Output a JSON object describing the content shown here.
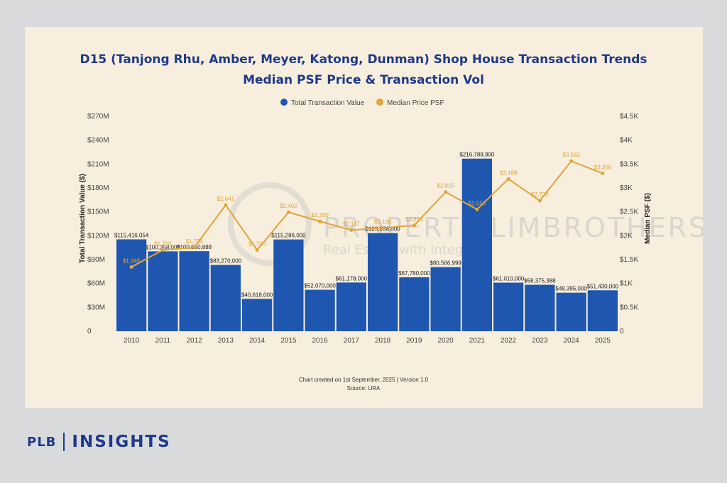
{
  "chart_data": {
    "type": "bar",
    "title": "D15 (Tanjong Rhu, Amber, Meyer, Katong, Dunman) Shop House Transaction Trends",
    "subtitle": "Median PSF Price & Transaction Vol",
    "categories": [
      "2010",
      "2011",
      "2012",
      "2013",
      "2014",
      "2015",
      "2016",
      "2017",
      "2018",
      "2019",
      "2020",
      "2021",
      "2022",
      "2023",
      "2024",
      "2025"
    ],
    "series": [
      {
        "name": "Total Transaction Value",
        "type": "bar",
        "axis": "left",
        "color": "#1f56b0",
        "values": [
          115416054,
          100358000,
          100550888,
          83270000,
          40618000,
          115286000,
          52070000,
          61178000,
          123258000,
          67780000,
          80566999,
          216788900,
          61010000,
          58375388,
          48395000,
          51430000
        ],
        "labels": [
          "$115,416,054",
          "$100,358,000",
          "$100,550,888",
          "$83,270,000",
          "$40,618,000",
          "$115,286,000",
          "$52,070,000",
          "$61,178,000",
          "$123,258,000",
          "$67,780,000",
          "$80,566,999",
          "$216,788,900",
          "$61,010,000",
          "$58,375,388",
          "$48,395,000",
          "$51,430,000"
        ]
      },
      {
        "name": "Median Price PSF",
        "type": "line",
        "axis": "right",
        "color": "#e0a43a",
        "values": [
          1345,
          1700,
          1754,
          2641,
          1700,
          2492,
          2300,
          2117,
          2160,
          2216,
          2915,
          2550,
          3188,
          2733,
          3562,
          3306
        ],
        "labels": [
          "$1,345",
          "$1,700",
          "$1,754",
          "$2,641",
          "$1,700",
          "$2,492",
          "$2,300",
          "$2,117",
          "$2,160",
          "$2,216",
          "$2,915",
          "$2,550",
          "$3,188",
          "$2,733",
          "$3,562",
          "$3,306"
        ]
      }
    ],
    "ylabel": "Total Transaction Value ($)",
    "y2label": "Median PSF ($)",
    "ylim": [
      0,
      270000000
    ],
    "y2lim": [
      0,
      4500
    ],
    "y_ticks": [
      0,
      30000000,
      60000000,
      90000000,
      120000000,
      150000000,
      180000000,
      210000000,
      240000000,
      270000000
    ],
    "y_tick_labels": [
      "0",
      "$30M",
      "$60M",
      "$90M",
      "$120M",
      "$150M",
      "$180M",
      "$210M",
      "$240M",
      "$270M"
    ],
    "y2_ticks": [
      0,
      500,
      1000,
      1500,
      2000,
      2500,
      3000,
      3500,
      4000,
      4500
    ],
    "y2_tick_labels": [
      "0",
      "$0.5K",
      "$1K",
      "$1.5K",
      "$2K",
      "$2.5K",
      "$3K",
      "$3.5K",
      "$4K",
      "$4.5K"
    ],
    "grid": false,
    "legend_position": "top-center",
    "footer_line1": "Chart created on 1st September, 2025 | Version 1.0",
    "footer_line2": "Source: URA",
    "watermark_line1": "PROPERTY LIMBROTHERS",
    "watermark_line2": "Real Estate with Integrity"
  },
  "brand": {
    "plb": "PLB",
    "insights": "INSIGHTS"
  }
}
